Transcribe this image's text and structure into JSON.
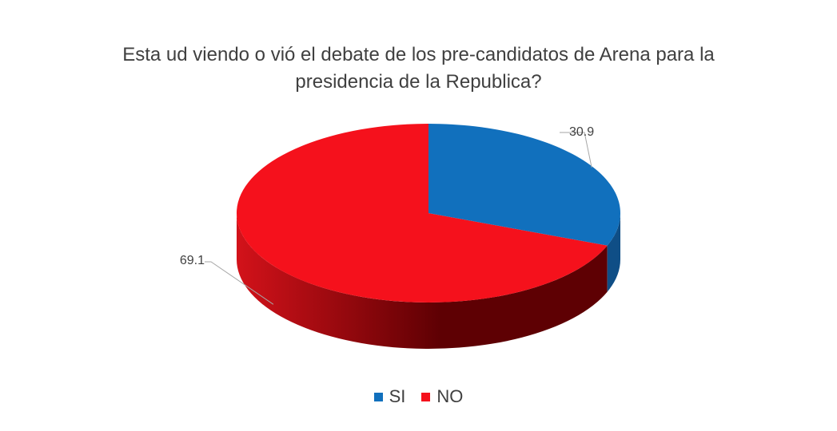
{
  "chart_data": {
    "type": "pie",
    "title_lines": [
      "Esta ud viendo o vió el debate de los pre-candidatos de Arena para la",
      "presidencia de la Republica?"
    ],
    "slices": [
      {
        "label": "SI",
        "value": 30.9,
        "display": "30.9",
        "color": "#1170BD"
      },
      {
        "label": "NO",
        "value": 69.1,
        "display": "69.1",
        "color": "#F5111C"
      }
    ],
    "legend_position": "bottom",
    "style": "3d"
  },
  "colors": {
    "si_side": "#0F4E86",
    "no_side_light": "#D3121A",
    "no_side_dark": "#5E0003",
    "leader_line": "#A6A6A6"
  }
}
